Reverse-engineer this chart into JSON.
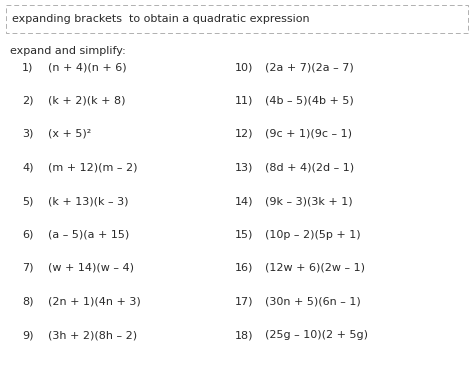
{
  "title": "expanding brackets  to obtain a quadratic expression",
  "subtitle": "expand and simplify:",
  "left_items": [
    [
      "1)",
      "(n + 4)(n + 6)"
    ],
    [
      "2)",
      "(k + 2)(k + 8)"
    ],
    [
      "3)",
      "(x + 5)²"
    ],
    [
      "4)",
      "(m + 12)(m – 2)"
    ],
    [
      "5)",
      "(k + 13)(k – 3)"
    ],
    [
      "6)",
      "(a – 5)(a + 15)"
    ],
    [
      "7)",
      "(w + 14)(w – 4)"
    ],
    [
      "8)",
      "(2n + 1)(4n + 3)"
    ],
    [
      "9)",
      "(3h + 2)(8h – 2)"
    ]
  ],
  "right_items": [
    [
      "10)",
      "(2a + 7)(2a – 7)"
    ],
    [
      "11)",
      "(4b – 5)(4b + 5)"
    ],
    [
      "12)",
      "(9c + 1)(9c – 1)"
    ],
    [
      "13)",
      "(8d + 4)(2d – 1)"
    ],
    [
      "14)",
      "(9k – 3)(3k + 1)"
    ],
    [
      "15)",
      "(10p – 2)(5p + 1)"
    ],
    [
      "16)",
      "(12w + 6)(2w – 1)"
    ],
    [
      "17)",
      "(30n + 5)(6n – 1)"
    ],
    [
      "18)",
      "(25g – 10)(2 + 5g)"
    ]
  ],
  "bg_color": "#ffffff",
  "text_color": "#2a2a2a",
  "border_color": "#b0b0b0",
  "title_fontsize": 8.0,
  "subtitle_fontsize": 8.0,
  "item_fontsize": 8.0
}
